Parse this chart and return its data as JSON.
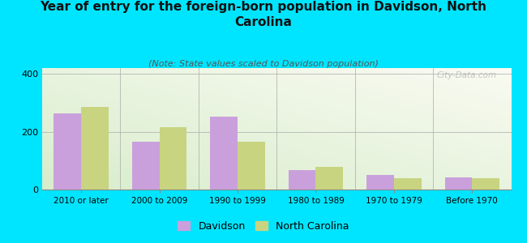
{
  "title": "Year of entry for the foreign-born population in Davidson, North\nCarolina",
  "subtitle": "(Note: State values scaled to Davidson population)",
  "categories": [
    "2010 or later",
    "2000 to 2009",
    "1990 to 1999",
    "1980 to 1989",
    "1970 to 1979",
    "Before 1970"
  ],
  "davidson_values": [
    263,
    165,
    252,
    68,
    50,
    42
  ],
  "nc_values": [
    285,
    215,
    165,
    78,
    38,
    40
  ],
  "davidson_color": "#c9a0dc",
  "nc_color": "#c8d480",
  "background_color": "#00e5ff",
  "ylim": [
    0,
    420
  ],
  "yticks": [
    0,
    200,
    400
  ],
  "bar_width": 0.35,
  "title_fontsize": 11,
  "subtitle_fontsize": 8,
  "legend_labels": [
    "Davidson",
    "North Carolina"
  ],
  "watermark": "City-Data.com"
}
